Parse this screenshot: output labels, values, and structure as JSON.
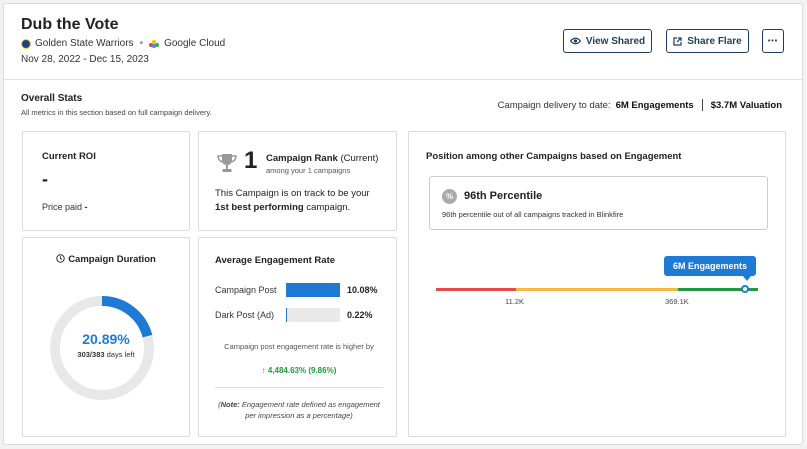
{
  "header": {
    "title": "Dub the Vote",
    "team": "Golden State Warriors",
    "separator": "•",
    "partner": "Google Cloud",
    "dates": "Nov 28, 2022 - Dec 15, 2023",
    "view_shared_label": "View Shared",
    "share_flare_label": "Share Flare",
    "more_label": "•••"
  },
  "overall": {
    "title": "Overall Stats",
    "subtitle": "All metrics in this section based on full campaign delivery.",
    "delivery_label": "Campaign delivery to date:",
    "engagements": "6M Engagements",
    "valuation": "$3.7M Valuation"
  },
  "roi": {
    "title": "Current ROI",
    "value": "-",
    "price_paid_label": "Price paid",
    "price_paid_value": "-"
  },
  "rank": {
    "number": "1",
    "label": "Campaign Rank",
    "label_suffix": "(Current)",
    "sub": "among your 1 campaigns",
    "text_prefix": "This Campaign is on track to be your",
    "text_bold": "1st best performing",
    "text_suffix": "campaign."
  },
  "duration": {
    "title": "Campaign Duration",
    "percent": "20.89%",
    "percent_value": 20.89,
    "days": "303/383",
    "days_suffix": "days left",
    "track_color": "#e8e8e8",
    "fill_color": "#1f7ad6"
  },
  "engagement": {
    "title": "Average Engagement Rate",
    "rows": [
      {
        "label": "Campaign Post",
        "value": "10.08%",
        "fraction": 1.0
      },
      {
        "label": "Dark Post (Ad)",
        "value": "0.22%",
        "fraction": 0.022
      }
    ],
    "note": "Campaign post engagement rate is higher by",
    "increase": "↑ 4,484.63% (9.86%)",
    "foot_bold": "Note:",
    "foot_text": "Engagement rate defined as engagement per impression as a percentage"
  },
  "position": {
    "title": "Position among other Campaigns based on Engagement",
    "percentile_title": "96th Percentile",
    "percentile_sub": "96th percentile out of all campaigns tracked in Blinkfire",
    "percentile_icon": "%",
    "tooltip": "6M Engagements",
    "ticks": [
      "11.2K",
      "369.1K"
    ],
    "segment_colors": [
      "#e84a4a",
      "#f5b941",
      "#1f9a3c"
    ],
    "marker_fraction": 0.96
  }
}
